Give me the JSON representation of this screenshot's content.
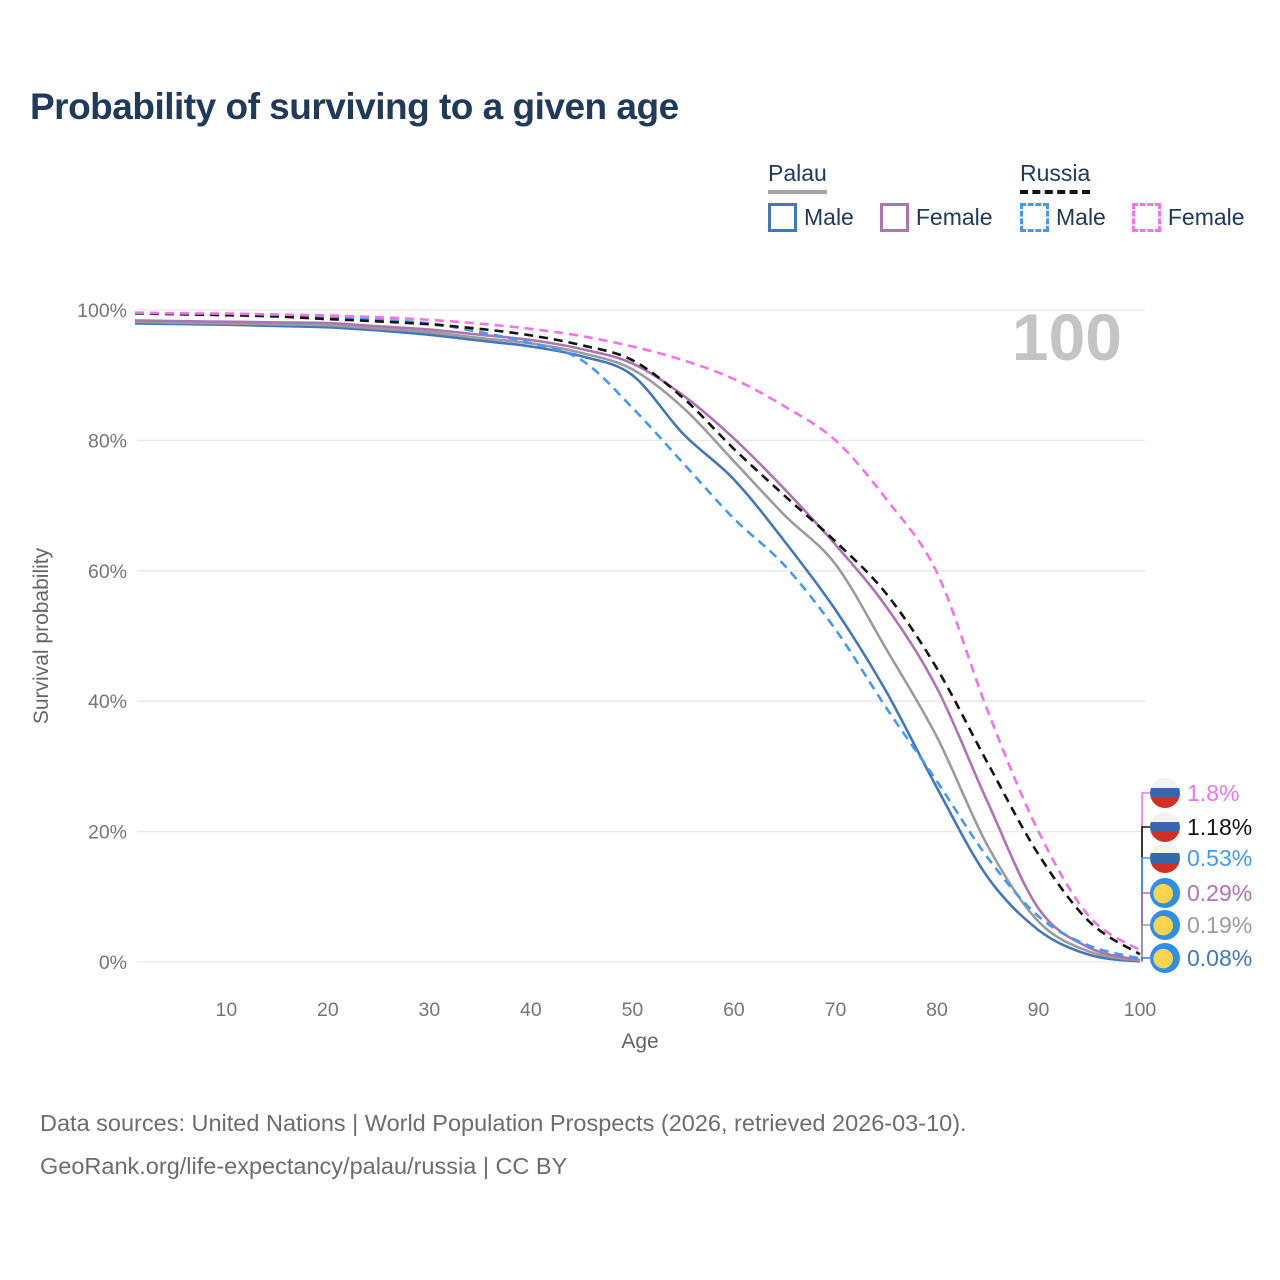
{
  "title": "Probability of surviving to a given age",
  "watermark": "100",
  "legend": {
    "groups": [
      {
        "label": "Palau",
        "line_style": "solid",
        "line_color": "#a3a3a3",
        "items": [
          {
            "label": "Male",
            "color": "#4377ba",
            "dashed": false
          },
          {
            "label": "Female",
            "color": "#ad74b2",
            "dashed": false
          }
        ]
      },
      {
        "label": "Russia",
        "line_style": "dashed",
        "line_color": "#141414",
        "items": [
          {
            "label": "Male",
            "color": "#4599f5",
            "dashed": true
          },
          {
            "label": "Female",
            "color": "#f473e8",
            "dashed": true
          }
        ]
      }
    ]
  },
  "end_labels": [
    {
      "text": "1.8%",
      "color": "#f473e8",
      "flag": "russia",
      "series": "russia_female"
    },
    {
      "text": "1.18%",
      "color": "#141414",
      "flag": "russia",
      "series": "russia_total"
    },
    {
      "text": "0.53%",
      "color": "#4599f5",
      "flag": "russia",
      "series": "russia_male"
    },
    {
      "text": "0.29%",
      "color": "#ad74b2",
      "flag": "palau",
      "series": "palau_female"
    },
    {
      "text": "0.19%",
      "color": "#9c9c9c",
      "flag": "palau",
      "series": "palau_total"
    },
    {
      "text": "0.08%",
      "color": "#4377ba",
      "flag": "palau",
      "series": "palau_male"
    }
  ],
  "footer": {
    "line1": "Data sources: United Nations | World Population Prospects (2026, retrieved 2026-03-10).",
    "line2": "GeoRank.org/life-expectancy/palau/russia | CC BY"
  },
  "chart_data": {
    "type": "line",
    "title": "Probability of surviving to a given age",
    "xlabel": "Age",
    "ylabel": "Survival probability",
    "xlim": [
      1,
      100
    ],
    "ylim": [
      0,
      100
    ],
    "grid": "horizontal",
    "legend_position": "top-right",
    "x_ticks": [
      10,
      20,
      30,
      40,
      50,
      60,
      70,
      80,
      90,
      100
    ],
    "y_ticks": [
      {
        "value": 0,
        "label": "0%"
      },
      {
        "value": 20,
        "label": "20%"
      },
      {
        "value": 40,
        "label": "40%"
      },
      {
        "value": 60,
        "label": "60%"
      },
      {
        "value": 80,
        "label": "80%"
      },
      {
        "value": 100,
        "label": "100%"
      }
    ],
    "series": [
      {
        "id": "palau_male",
        "name": "Palau Male",
        "country": "Palau",
        "sex": "male",
        "color": "#4377ba",
        "dashed": false,
        "end_label": "0.08%",
        "points": [
          [
            1,
            97.95
          ],
          [
            5,
            97.85
          ],
          [
            10,
            97.75
          ],
          [
            15,
            97.55
          ],
          [
            20,
            97.35
          ],
          [
            25,
            96.85
          ],
          [
            30,
            96.2
          ],
          [
            35,
            95.3
          ],
          [
            40,
            94.4
          ],
          [
            45,
            92.9
          ],
          [
            50,
            90.0
          ],
          [
            55,
            81.0
          ],
          [
            60,
            74.0
          ],
          [
            65,
            64.5
          ],
          [
            70,
            54.0
          ],
          [
            75,
            41.5
          ],
          [
            80,
            26.7
          ],
          [
            85,
            13.0
          ],
          [
            90,
            4.9
          ],
          [
            95,
            1.1
          ],
          [
            100,
            0.08
          ]
        ]
      },
      {
        "id": "palau_total",
        "name": "Palau",
        "country": "Palau",
        "sex": "all",
        "color": "#9c9c9c",
        "dashed": false,
        "end_label": "0.19%",
        "points": [
          [
            1,
            98.2
          ],
          [
            5,
            98.05
          ],
          [
            10,
            97.95
          ],
          [
            15,
            97.8
          ],
          [
            20,
            97.65
          ],
          [
            25,
            97.15
          ],
          [
            30,
            96.6
          ],
          [
            35,
            95.7
          ],
          [
            40,
            94.9
          ],
          [
            45,
            93.4
          ],
          [
            50,
            90.9
          ],
          [
            55,
            85.0
          ],
          [
            60,
            76.8
          ],
          [
            65,
            68.5
          ],
          [
            70,
            61.0
          ],
          [
            75,
            48.0
          ],
          [
            80,
            34.5
          ],
          [
            85,
            17.8
          ],
          [
            90,
            6.2
          ],
          [
            95,
            1.6
          ],
          [
            100,
            0.19
          ]
        ]
      },
      {
        "id": "palau_female",
        "name": "Palau Female",
        "country": "Palau",
        "sex": "female",
        "color": "#ad74b2",
        "dashed": false,
        "end_label": "0.29%",
        "points": [
          [
            1,
            98.4
          ],
          [
            5,
            98.3
          ],
          [
            10,
            98.2
          ],
          [
            15,
            98.1
          ],
          [
            20,
            98.0
          ],
          [
            25,
            97.5
          ],
          [
            30,
            97.0
          ],
          [
            35,
            96.2
          ],
          [
            40,
            95.4
          ],
          [
            45,
            94.0
          ],
          [
            50,
            91.8
          ],
          [
            55,
            86.9
          ],
          [
            60,
            80.3
          ],
          [
            65,
            72.5
          ],
          [
            70,
            64.0
          ],
          [
            75,
            54.5
          ],
          [
            80,
            42.0
          ],
          [
            85,
            24.5
          ],
          [
            90,
            8.2
          ],
          [
            95,
            2.2
          ],
          [
            100,
            0.29
          ]
        ]
      },
      {
        "id": "russia_male",
        "name": "Russia Male",
        "country": "Russia",
        "sex": "male",
        "color": "#4599f5",
        "dashed": true,
        "end_label": "0.53%",
        "points": [
          [
            1,
            99.55
          ],
          [
            5,
            99.45
          ],
          [
            10,
            99.3
          ],
          [
            15,
            99.1
          ],
          [
            20,
            98.85
          ],
          [
            25,
            98.5
          ],
          [
            30,
            97.95
          ],
          [
            35,
            96.6
          ],
          [
            40,
            94.9
          ],
          [
            45,
            92.3
          ],
          [
            50,
            85.0
          ],
          [
            55,
            76.5
          ],
          [
            60,
            68.0
          ],
          [
            65,
            60.8
          ],
          [
            70,
            51.0
          ],
          [
            75,
            39.0
          ],
          [
            80,
            27.7
          ],
          [
            85,
            16.0
          ],
          [
            90,
            7.0
          ],
          [
            95,
            2.5
          ],
          [
            100,
            0.53
          ]
        ]
      },
      {
        "id": "russia_total",
        "name": "Russia",
        "country": "Russia",
        "sex": "all",
        "color": "#141414",
        "dashed": true,
        "end_label": "1.18%",
        "points": [
          [
            1,
            99.5
          ],
          [
            5,
            99.35
          ],
          [
            10,
            99.2
          ],
          [
            15,
            99.0
          ],
          [
            20,
            98.6
          ],
          [
            25,
            98.25
          ],
          [
            30,
            97.8
          ],
          [
            35,
            97.1
          ],
          [
            40,
            96.1
          ],
          [
            45,
            94.6
          ],
          [
            50,
            92.3
          ],
          [
            55,
            86.5
          ],
          [
            60,
            78.7
          ],
          [
            65,
            71.5
          ],
          [
            70,
            64.5
          ],
          [
            75,
            56.5
          ],
          [
            80,
            45.0
          ],
          [
            85,
            30.5
          ],
          [
            90,
            16.5
          ],
          [
            95,
            6.2
          ],
          [
            100,
            1.18
          ]
        ]
      },
      {
        "id": "russia_female",
        "name": "Russia Female",
        "country": "Russia",
        "sex": "female",
        "color": "#f473e8",
        "dashed": true,
        "end_label": "1.8%",
        "points": [
          [
            1,
            99.6
          ],
          [
            5,
            99.5
          ],
          [
            10,
            99.45
          ],
          [
            15,
            99.3
          ],
          [
            20,
            99.15
          ],
          [
            25,
            98.9
          ],
          [
            30,
            98.5
          ],
          [
            35,
            97.9
          ],
          [
            40,
            97.1
          ],
          [
            45,
            96.0
          ],
          [
            50,
            94.4
          ],
          [
            55,
            92.3
          ],
          [
            60,
            89.4
          ],
          [
            65,
            85.2
          ],
          [
            70,
            80.0
          ],
          [
            75,
            71.0
          ],
          [
            80,
            59.7
          ],
          [
            85,
            38.5
          ],
          [
            90,
            20.0
          ],
          [
            95,
            7.0
          ],
          [
            100,
            1.8
          ]
        ]
      }
    ]
  }
}
